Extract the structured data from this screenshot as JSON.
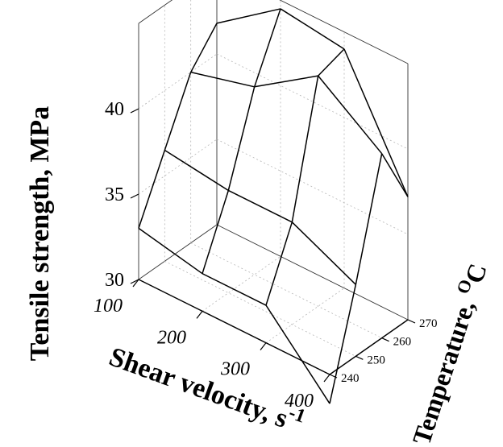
{
  "chart_data": {
    "type": "surface",
    "title": "",
    "xlabel": "Shear velocity, s",
    "xlabel_sup": "-1",
    "ylabel": "Temperature, ",
    "ylabel_unit_sup": "O",
    "ylabel_unit": "C",
    "zlabel": "Tensile strength, MPa",
    "x": [
      100,
      200,
      300,
      400
    ],
    "y": [
      240,
      250,
      260,
      270
    ],
    "z": [
      [
        33.0,
        36.5,
        40.0,
        41.8
      ],
      [
        32.2,
        36.0,
        41.0,
        44.5
      ],
      [
        32.2,
        36.0,
        43.5,
        44.0
      ],
      [
        28.3,
        34.2,
        40.8,
        37.2
      ]
    ],
    "xlim": [
      100,
      400
    ],
    "ylim": [
      240,
      270
    ],
    "zlim": [
      30,
      45
    ],
    "x_ticks": [
      "100",
      "200",
      "300",
      "400"
    ],
    "y_ticks": [
      "240",
      "250",
      "260",
      "270"
    ],
    "z_ticks": [
      "30",
      "35",
      "40"
    ],
    "grid": true
  }
}
